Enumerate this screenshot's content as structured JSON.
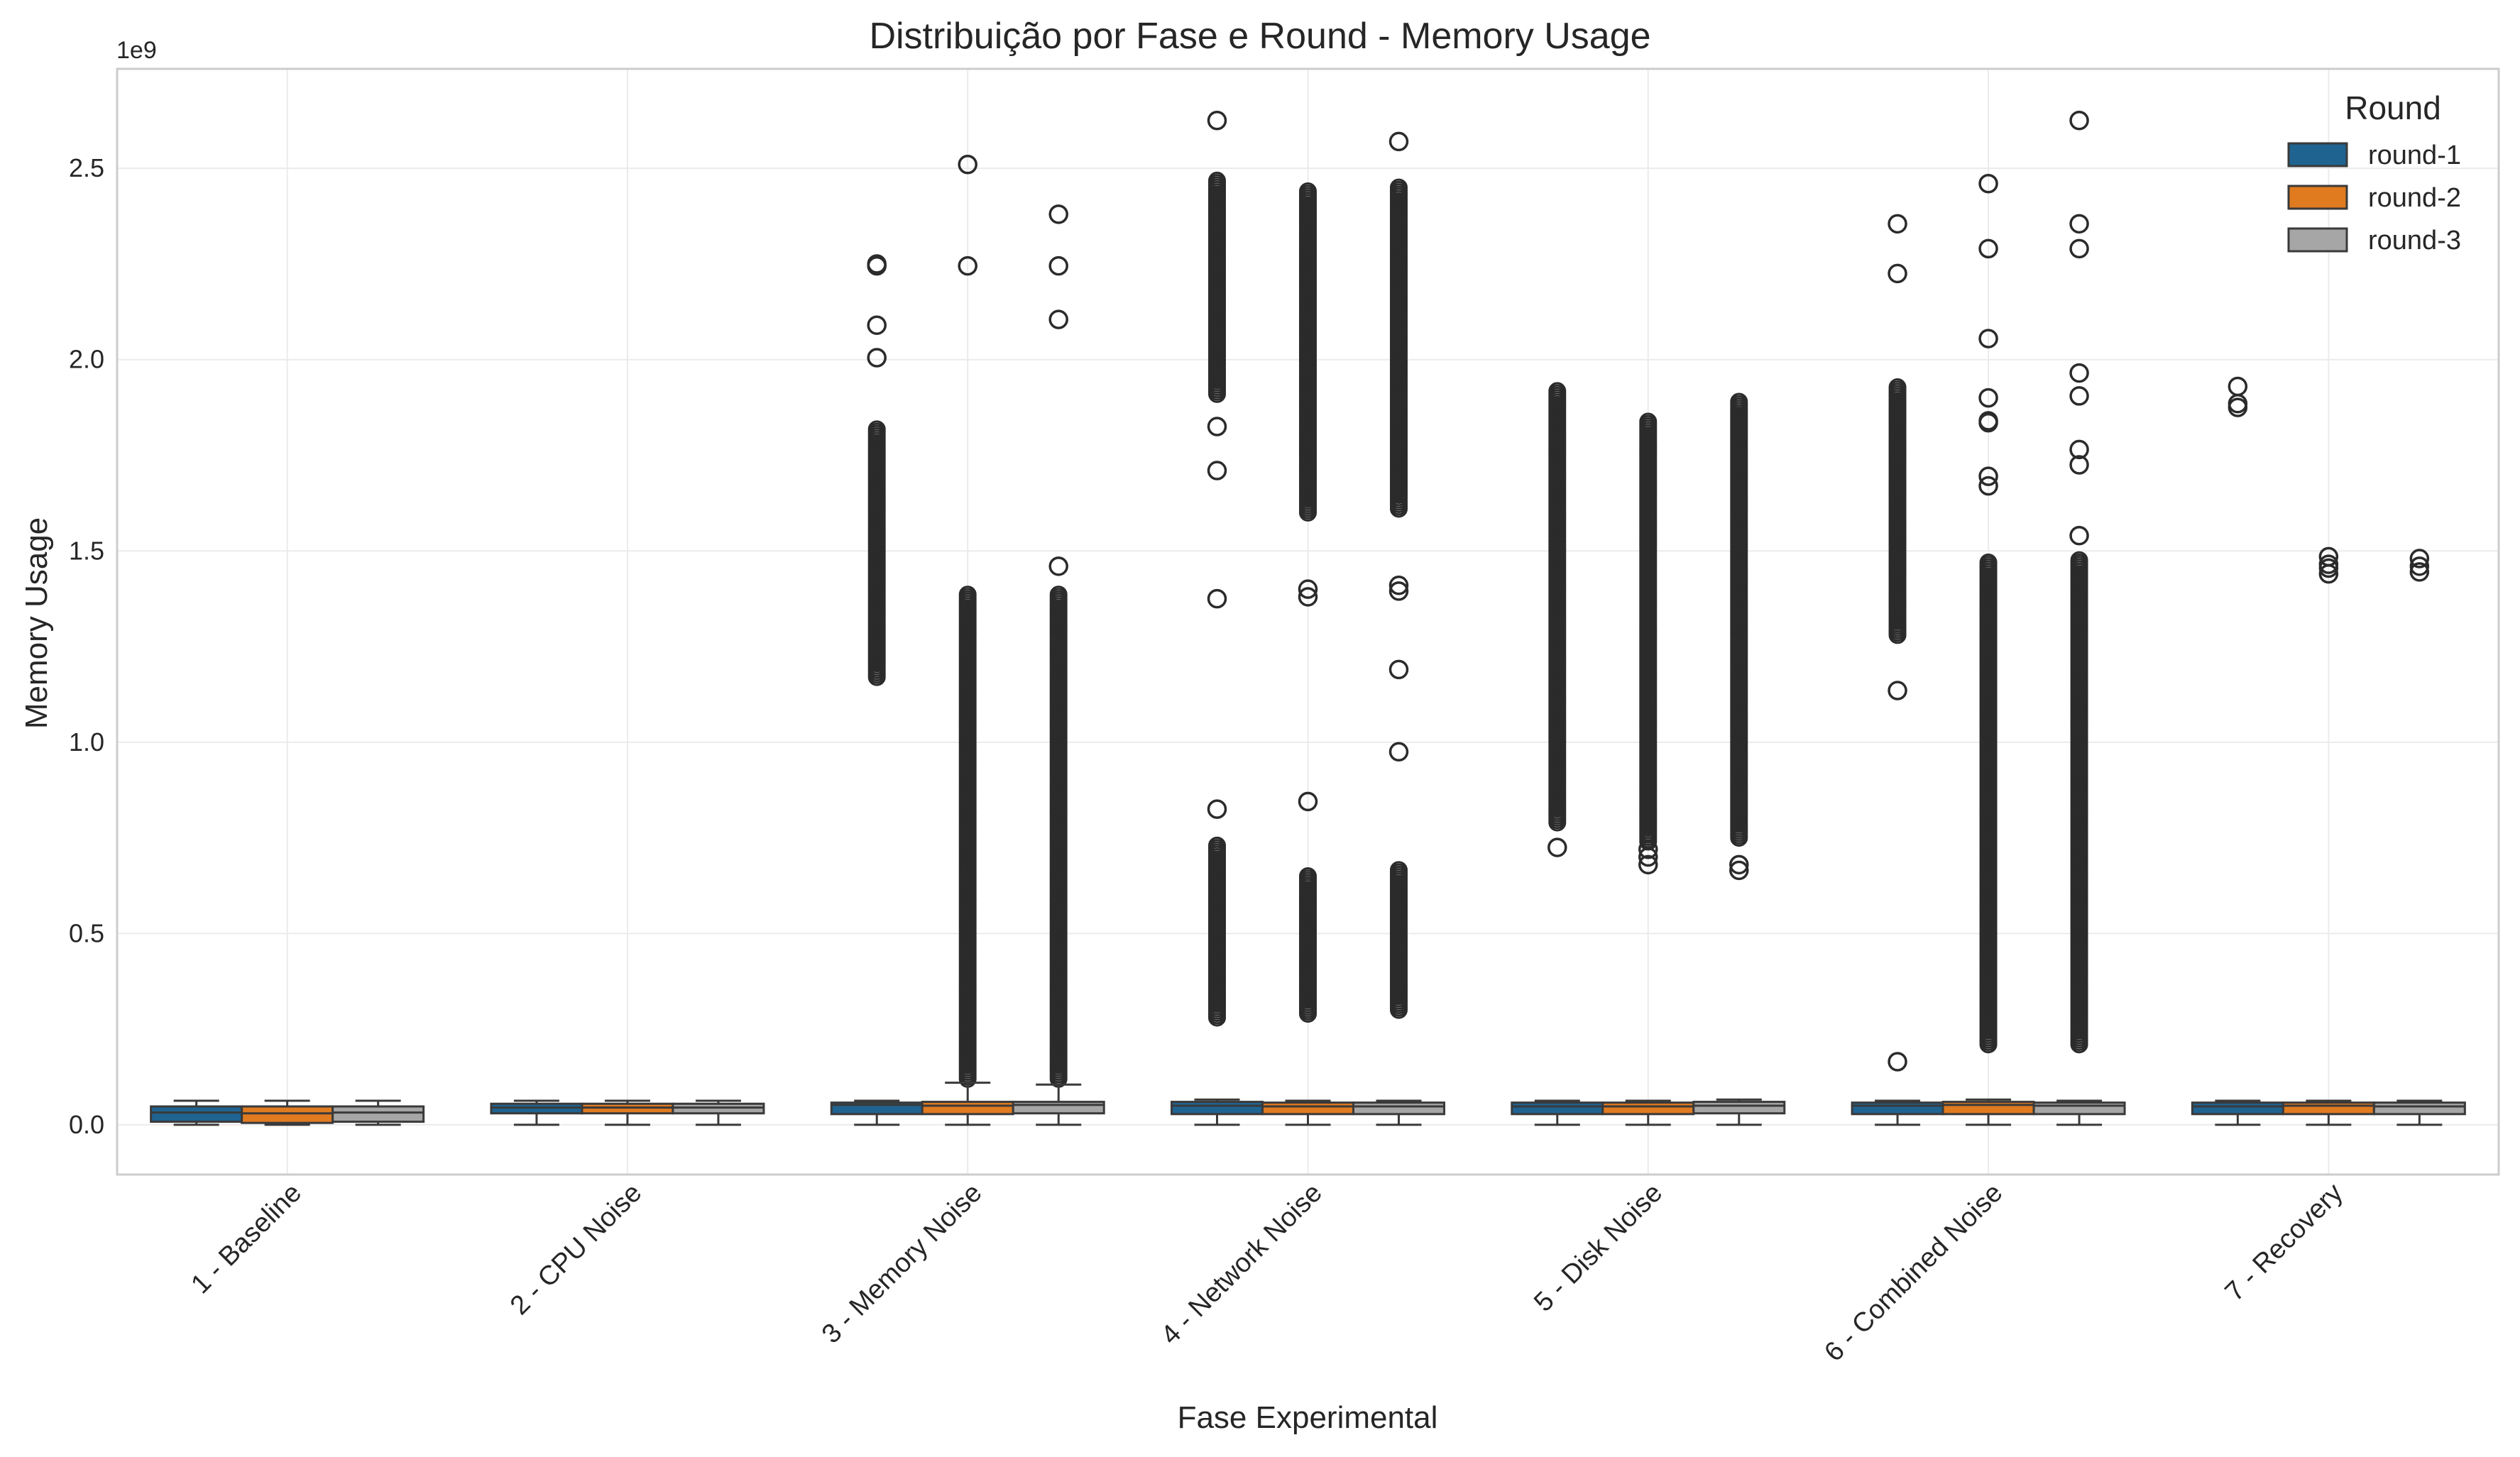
{
  "chart_data": {
    "type": "box",
    "title": "Distribuição por Fase e Round - Memory Usage",
    "xlabel": "Fase Experimental",
    "ylabel": "Memory Usage",
    "y_offset_label": "1e9",
    "y_scale": 1000000000,
    "ylim": [
      -130000000,
      2760000000
    ],
    "yticks": [
      0.0,
      0.5,
      1.0,
      1.5,
      2.0,
      2.5
    ],
    "ytick_labels": [
      "0.0",
      "0.5",
      "1.0",
      "1.5",
      "2.0",
      "2.5"
    ],
    "grid": true,
    "legend": {
      "title": "Round",
      "position": "top-right"
    },
    "categories": [
      "1 - Baseline",
      "2 - CPU Noise",
      "3 - Memory Noise",
      "4 - Network Noise",
      "5 - Disk Noise",
      "6 - Combined Noise",
      "7 - Recovery"
    ],
    "series": [
      {
        "name": "round-1",
        "color": "#1f6391",
        "boxes": [
          {
            "whislo": 0.0,
            "q1": 0.008,
            "med": 0.032,
            "q3": 0.048,
            "whishi": 0.063,
            "fliers": []
          },
          {
            "whislo": 0.0,
            "q1": 0.03,
            "med": 0.045,
            "q3": 0.055,
            "whishi": 0.063,
            "fliers": []
          },
          {
            "whislo": 0.0,
            "q1": 0.028,
            "med": 0.052,
            "q3": 0.058,
            "whishi": 0.063,
            "fliers": [
              2.25,
              2.245,
              2.09,
              2.005
            ],
            "flier_ranges": [
              [
                1.17,
                1.82
              ]
            ]
          },
          {
            "whislo": 0.0,
            "q1": 0.028,
            "med": 0.05,
            "q3": 0.06,
            "whishi": 0.066,
            "fliers": [
              2.625,
              1.825,
              1.71,
              1.375,
              0.825
            ],
            "flier_ranges": [
              [
                1.91,
                2.47
              ],
              [
                0.28,
                0.73
              ]
            ]
          },
          {
            "whislo": 0.0,
            "q1": 0.028,
            "med": 0.048,
            "q3": 0.058,
            "whishi": 0.063,
            "fliers": [
              0.725
            ],
            "flier_ranges": [
              [
                0.79,
                1.92
              ]
            ]
          },
          {
            "whislo": 0.0,
            "q1": 0.028,
            "med": 0.05,
            "q3": 0.058,
            "whishi": 0.063,
            "fliers": [
              2.355,
              2.225,
              1.135,
              0.165
            ],
            "flier_ranges": [
              [
                1.28,
                1.93
              ]
            ]
          },
          {
            "whislo": 0.0,
            "q1": 0.028,
            "med": 0.048,
            "q3": 0.058,
            "whishi": 0.063,
            "fliers": [
              1.93,
              1.885,
              1.875
            ],
            "flier_ranges": []
          }
        ]
      },
      {
        "name": "round-2",
        "color": "#e07b20",
        "boxes": [
          {
            "whislo": 0.0,
            "q1": 0.005,
            "med": 0.03,
            "q3": 0.048,
            "whishi": 0.063,
            "fliers": []
          },
          {
            "whislo": 0.0,
            "q1": 0.03,
            "med": 0.045,
            "q3": 0.055,
            "whishi": 0.063,
            "fliers": []
          },
          {
            "whislo": 0.0,
            "q1": 0.028,
            "med": 0.05,
            "q3": 0.06,
            "whishi": 0.11,
            "fliers": [
              2.51,
              2.245
            ],
            "flier_ranges": [
              [
                0.12,
                1.39
              ]
            ]
          },
          {
            "whislo": 0.0,
            "q1": 0.028,
            "med": 0.048,
            "q3": 0.058,
            "whishi": 0.063,
            "fliers": [
              1.4,
              1.38,
              0.845
            ],
            "flier_ranges": [
              [
                1.6,
                2.44
              ],
              [
                0.29,
                0.65
              ]
            ]
          },
          {
            "whislo": 0.0,
            "q1": 0.028,
            "med": 0.048,
            "q3": 0.058,
            "whishi": 0.063,
            "fliers": [
              0.72,
              0.7,
              0.68
            ],
            "flier_ranges": [
              [
                0.74,
                1.84
              ]
            ]
          },
          {
            "whislo": 0.0,
            "q1": 0.028,
            "med": 0.052,
            "q3": 0.06,
            "whishi": 0.066,
            "fliers": [
              2.46,
              2.29,
              2.055,
              1.9,
              1.84,
              1.835,
              1.695,
              1.67
            ],
            "flier_ranges": [
              [
                0.21,
                1.47
              ]
            ]
          },
          {
            "whislo": 0.0,
            "q1": 0.028,
            "med": 0.05,
            "q3": 0.058,
            "whishi": 0.063,
            "fliers": [
              1.485,
              1.465,
              1.455,
              1.44
            ],
            "flier_ranges": []
          }
        ]
      },
      {
        "name": "round-3",
        "color": "#a6a6a6",
        "boxes": [
          {
            "whislo": 0.0,
            "q1": 0.008,
            "med": 0.032,
            "q3": 0.048,
            "whishi": 0.063,
            "fliers": []
          },
          {
            "whislo": 0.0,
            "q1": 0.03,
            "med": 0.045,
            "q3": 0.055,
            "whishi": 0.063,
            "fliers": []
          },
          {
            "whislo": 0.0,
            "q1": 0.03,
            "med": 0.052,
            "q3": 0.06,
            "whishi": 0.105,
            "fliers": [
              2.38,
              2.245,
              2.105,
              1.46
            ],
            "flier_ranges": [
              [
                0.12,
                1.39
              ]
            ]
          },
          {
            "whislo": 0.0,
            "q1": 0.028,
            "med": 0.048,
            "q3": 0.058,
            "whishi": 0.063,
            "fliers": [
              2.57,
              1.41,
              1.395,
              1.19,
              0.975
            ],
            "flier_ranges": [
              [
                1.61,
                2.45
              ],
              [
                0.3,
                0.67
              ]
            ]
          },
          {
            "whislo": 0.0,
            "q1": 0.03,
            "med": 0.05,
            "q3": 0.06,
            "whishi": 0.066,
            "fliers": [
              0.68,
              0.665
            ],
            "flier_ranges": [
              [
                0.75,
                1.89
              ]
            ]
          },
          {
            "whislo": 0.0,
            "q1": 0.028,
            "med": 0.05,
            "q3": 0.058,
            "whishi": 0.063,
            "fliers": [
              2.625,
              2.355,
              2.29,
              1.965,
              1.905,
              1.765,
              1.725,
              1.54
            ],
            "flier_ranges": [
              [
                0.21,
                1.48
              ]
            ]
          },
          {
            "whislo": 0.0,
            "q1": 0.028,
            "med": 0.048,
            "q3": 0.058,
            "whishi": 0.063,
            "fliers": [
              1.48,
              1.46,
              1.445
            ],
            "flier_ranges": []
          }
        ]
      }
    ]
  }
}
